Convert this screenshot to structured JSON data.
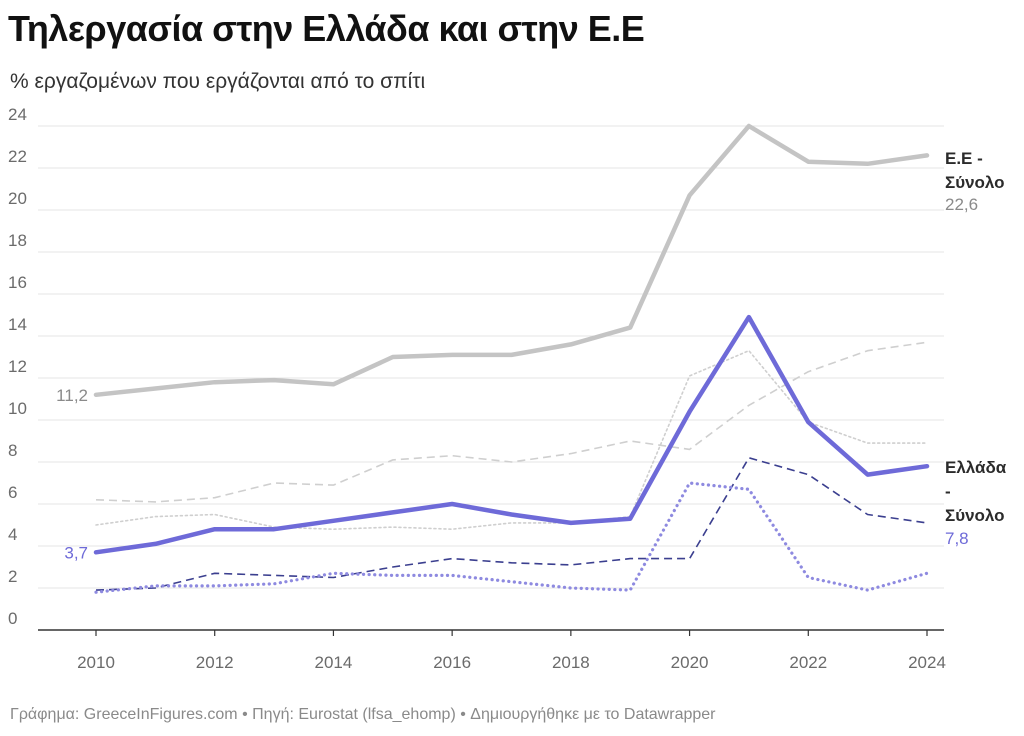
{
  "header": {
    "title": "Τηλεργασία στην Ελλάδα και στην Ε.Ε",
    "subtitle": "% εργαζομένων που εργάζονται από το σπίτι"
  },
  "footer": {
    "text": "Γράφημα: GreeceInFigures.com • Πηγή: Eurostat (lfsa_ehomp) • Δημιουργήθηκε με το Datawrapper"
  },
  "chart_data": {
    "type": "line",
    "title": "Τηλεργασία στην Ελλάδα και στην Ε.Ε",
    "subtitle": "% εργαζομένων που εργάζονται από το σπίτι",
    "xlabel": "",
    "ylabel": "",
    "xlim": [
      2010,
      2024
    ],
    "ylim": [
      0,
      24
    ],
    "x_ticks": [
      "2010",
      "2012",
      "2014",
      "2016",
      "2018",
      "2020",
      "2022",
      "2024"
    ],
    "y_ticks": [
      "0",
      "2",
      "4",
      "6",
      "8",
      "10",
      "12",
      "14",
      "16",
      "18",
      "20",
      "22",
      "24"
    ],
    "grid": true,
    "x": [
      2010,
      2011,
      2012,
      2013,
      2014,
      2015,
      2016,
      2017,
      2018,
      2019,
      2020,
      2021,
      2022,
      2023,
      2024
    ],
    "series": [
      {
        "name": "Ε.Ε - Σύνολο",
        "label_lines": [
          "Ε.Ε -",
          "Σύνολο"
        ],
        "end_value_label": "22,6",
        "start_value_label": "11,2",
        "color": "#c4c4c4",
        "style": "solid-thick",
        "values": [
          11.2,
          11.5,
          11.8,
          11.9,
          11.7,
          13.0,
          13.1,
          13.1,
          13.6,
          14.4,
          20.7,
          24.0,
          22.3,
          22.2,
          22.6
        ]
      },
      {
        "name": "Ελλάδα - Σύνολο",
        "label_lines": [
          "Ελλάδα",
          "-",
          "Σύνολο"
        ],
        "end_value_label": "7,8",
        "start_value_label": "3,7",
        "color": "#6e6ad8",
        "style": "solid-thick",
        "values": [
          3.7,
          4.1,
          4.8,
          4.8,
          5.2,
          5.6,
          6.0,
          5.5,
          5.1,
          5.3,
          10.4,
          14.9,
          9.9,
          7.4,
          7.8
        ]
      },
      {
        "color": "#cfcfcf",
        "style": "dashed",
        "values": [
          6.2,
          6.1,
          6.3,
          7.0,
          6.9,
          8.1,
          8.3,
          8.0,
          8.4,
          9.0,
          8.6,
          10.7,
          12.3,
          13.3,
          13.7
        ]
      },
      {
        "color": "#cfcfcf",
        "style": "dotted",
        "values": [
          5.0,
          5.4,
          5.5,
          4.9,
          4.8,
          4.9,
          4.8,
          5.1,
          5.1,
          5.4,
          12.1,
          13.3,
          9.9,
          8.9,
          8.9
        ]
      },
      {
        "color": "#3b3f8f",
        "style": "dashed",
        "values": [
          1.9,
          2.0,
          2.7,
          2.6,
          2.5,
          3.0,
          3.4,
          3.2,
          3.1,
          3.4,
          3.4,
          8.2,
          7.4,
          5.5,
          5.1
        ]
      },
      {
        "color": "#8e8ae0",
        "style": "dotted",
        "values": [
          1.8,
          2.1,
          2.1,
          2.2,
          2.7,
          2.6,
          2.6,
          2.3,
          2.0,
          1.9,
          7.0,
          6.7,
          2.5,
          1.9,
          2.7
        ]
      }
    ]
  }
}
